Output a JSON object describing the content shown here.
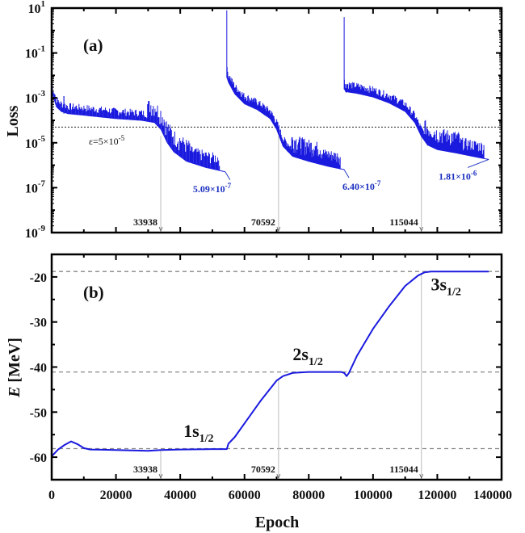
{
  "chart_data": [
    {
      "type": "line",
      "panel_label": "(a)",
      "xlabel": "",
      "ylabel": "Loss",
      "yscale": "log",
      "xlim": [
        0,
        140000
      ],
      "ylim": [
        1e-09,
        10
      ],
      "ytick_labels": [
        {
          "base": "10",
          "exp": "1",
          "value": 10
        },
        {
          "base": "10",
          "exp": "-1",
          "value": 0.1
        },
        {
          "base": "10",
          "exp": "-3",
          "value": 0.001
        },
        {
          "base": "10",
          "exp": "-5",
          "value": 1e-05
        },
        {
          "base": "10",
          "exp": "-7",
          "value": 1e-07
        },
        {
          "base": "10",
          "exp": "-9",
          "value": 1e-09
        }
      ],
      "threshold": {
        "value": 5e-05,
        "label_prefix": "ε=5×10",
        "label_exp": "-5"
      },
      "markers": [
        {
          "epoch": 33938,
          "label": "33938"
        },
        {
          "epoch": 70592,
          "label": "70592"
        },
        {
          "epoch": 115044,
          "label": "115044"
        }
      ],
      "final_values": [
        {
          "epoch": 54000,
          "value": 5.09e-07,
          "label_base": "5.09×10",
          "label_exp": "-7"
        },
        {
          "epoch": 91000,
          "value": 6.4e-07,
          "label_base": "6.40×10",
          "label_exp": "-7"
        },
        {
          "epoch": 136000,
          "value": 1.81e-06,
          "label_base": "1.81×10",
          "label_exp": "-6"
        }
      ],
      "series": [
        {
          "name": "loss",
          "color": "#1a1adf",
          "segments": [
            {
              "x": [
                0,
                1500,
                3000,
                5000,
                10000,
                20000,
                28000,
                32000,
                34000,
                36000,
                38000,
                42000,
                48000,
                54000
              ],
              "y": [
                0.002,
                0.0004,
                0.00025,
                0.0002,
                0.00017,
                0.00012,
                0.0001,
                8e-05,
                4e-05,
                1e-05,
                4e-06,
                1.5e-06,
                8e-07,
                5.09e-07
              ]
            },
            {
              "x": [
                54500,
                54600,
                55000,
                57000,
                60000,
                64000,
                68000,
                70000,
                72000,
                75000,
                80000,
                86000,
                91000
              ],
              "y": [
                8,
                0.008,
                0.005,
                0.0015,
                0.00055,
                0.0003,
                0.00012,
                4e-05,
                7e-06,
                2.5e-06,
                1.5e-06,
                9e-07,
                6.4e-07
              ]
            },
            {
              "x": [
                91000,
                91100,
                91500,
                95000,
                100000,
                105000,
                110000,
                113000,
                115000,
                117000,
                120000,
                126000,
                131000,
                136000
              ],
              "y": [
                4,
                0.0025,
                0.0019,
                0.0016,
                0.0011,
                0.0006,
                0.00025,
                8e-05,
                2e-05,
                8e-06,
                5e-06,
                3.5e-06,
                2.5e-06,
                1.81e-06
              ]
            }
          ]
        }
      ]
    },
    {
      "type": "line",
      "panel_label": "(b)",
      "xlabel": "Epoch",
      "ylabel_italic": "E",
      "ylabel_rest": " [MeV]",
      "xlim": [
        0,
        140000
      ],
      "ylim": [
        -65,
        -15
      ],
      "xtick_labels": [
        "0",
        "20000",
        "40000",
        "60000",
        "80000",
        "100000",
        "120000",
        "140000"
      ],
      "xticks": [
        0,
        20000,
        40000,
        60000,
        80000,
        100000,
        120000,
        140000
      ],
      "ytick_labels": [
        "-20",
        "-30",
        "-40",
        "-50",
        "-60"
      ],
      "yticks": [
        -20,
        -30,
        -40,
        -50,
        -60
      ],
      "reference_levels": [
        -18.8,
        -41.1,
        -58.1
      ],
      "markers": [
        {
          "epoch": 33938,
          "label": "33938"
        },
        {
          "epoch": 70592,
          "label": "70592"
        },
        {
          "epoch": 115044,
          "label": "115044"
        }
      ],
      "state_labels": [
        {
          "main": "1s",
          "sub": "1/2",
          "epoch": 41000,
          "energy": -55.5
        },
        {
          "main": "2s",
          "sub": "1/2",
          "epoch": 75000,
          "energy": -38.5
        },
        {
          "main": "3s",
          "sub": "1/2",
          "epoch": 118000,
          "energy": -23.0
        }
      ],
      "series": [
        {
          "name": "energy",
          "color": "#1a1adf",
          "x": [
            0,
            2000,
            4000,
            6000,
            8000,
            10000,
            12000,
            20000,
            30000,
            34000,
            40000,
            50000,
            54500,
            55000,
            57000,
            60000,
            65000,
            70000,
            72000,
            75000,
            80000,
            90000,
            91000,
            91800,
            92500,
            95000,
            100000,
            105000,
            110000,
            114000,
            116000,
            118000,
            125000,
            136000
          ],
          "y": [
            -59.8,
            -58.3,
            -57.3,
            -56.5,
            -57.1,
            -58.0,
            -58.3,
            -58.4,
            -58.6,
            -58.4,
            -58.3,
            -58.2,
            -58.2,
            -57.0,
            -55.5,
            -52.5,
            -47.5,
            -43.0,
            -42.0,
            -41.3,
            -41.1,
            -41.1,
            -41.3,
            -42.0,
            -41.3,
            -37.5,
            -31.5,
            -26.5,
            -22.0,
            -19.7,
            -19.0,
            -18.8,
            -18.8,
            -18.8
          ]
        }
      ]
    }
  ]
}
